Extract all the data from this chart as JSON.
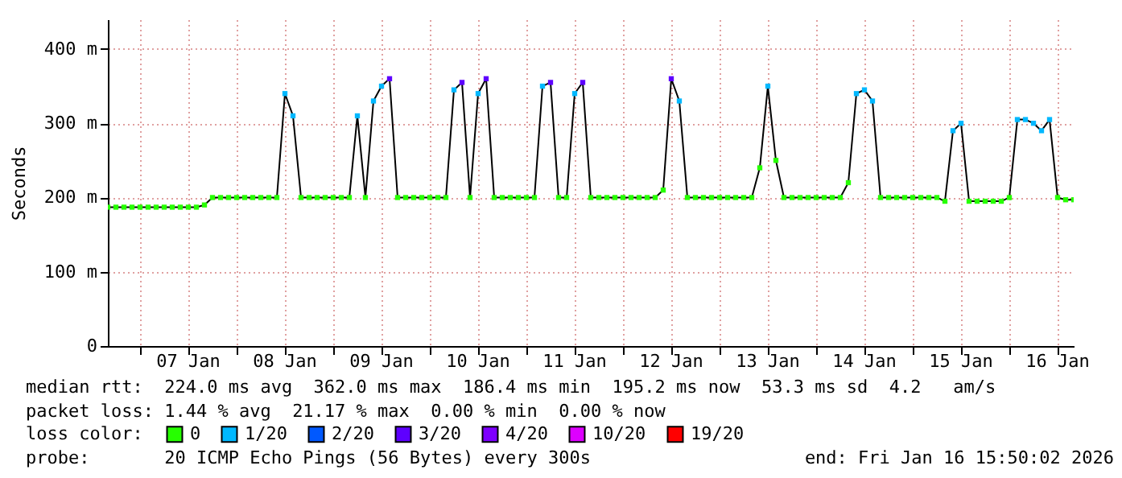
{
  "chart_data": {
    "type": "line",
    "ylabel": "Seconds",
    "legend_title": "loss color:",
    "legend": "bottom",
    "grid": true,
    "marker": "square",
    "line_style": "solid",
    "xlim": [
      "2026-01-06T16:00",
      "2026-01-16T16:00"
    ],
    "xticks": [
      {
        "value": "2026-01-07T00:00",
        "label": null
      },
      {
        "value": "2026-01-07T12:00",
        "label": "07 Jan"
      },
      {
        "value": "2026-01-08T00:00",
        "label": null
      },
      {
        "value": "2026-01-08T12:00",
        "label": "08 Jan"
      },
      {
        "value": "2026-01-09T00:00",
        "label": null
      },
      {
        "value": "2026-01-09T12:00",
        "label": "09 Jan"
      },
      {
        "value": "2026-01-10T00:00",
        "label": null
      },
      {
        "value": "2026-01-10T12:00",
        "label": "10 Jan"
      },
      {
        "value": "2026-01-11T00:00",
        "label": null
      },
      {
        "value": "2026-01-11T12:00",
        "label": "11 Jan"
      },
      {
        "value": "2026-01-12T00:00",
        "label": null
      },
      {
        "value": "2026-01-12T12:00",
        "label": "12 Jan"
      },
      {
        "value": "2026-01-13T00:00",
        "label": null
      },
      {
        "value": "2026-01-13T12:00",
        "label": "13 Jan"
      },
      {
        "value": "2026-01-14T00:00",
        "label": null
      },
      {
        "value": "2026-01-14T12:00",
        "label": "14 Jan"
      },
      {
        "value": "2026-01-15T00:00",
        "label": null
      },
      {
        "value": "2026-01-15T12:00",
        "label": "15 Jan"
      },
      {
        "value": "2026-01-16T00:00",
        "label": null
      },
      {
        "value": "2026-01-16T12:00",
        "label": "16 Jan"
      }
    ],
    "ylim": [
      0,
      440
    ],
    "yticks": [
      0,
      {
        "value": 100,
        "label": "100 m"
      },
      {
        "value": 200,
        "label": "200 m"
      },
      {
        "value": 300,
        "label": "300 m"
      },
      {
        "value": 400,
        "label": "400 m"
      }
    ],
    "x": [
      "2026-01-06T16:00",
      "2026-01-06T18:00",
      "2026-01-06T20:00",
      "2026-01-06T22:00",
      "2026-01-07T00:00",
      "2026-01-07T02:00",
      "2026-01-07T04:00",
      "2026-01-07T06:00",
      "2026-01-07T08:00",
      "2026-01-07T10:00",
      "2026-01-07T12:00",
      "2026-01-07T14:00",
      "2026-01-07T16:00",
      "2026-01-07T18:00",
      "2026-01-07T20:00",
      "2026-01-07T22:00",
      "2026-01-08T00:00",
      "2026-01-08T02:00",
      "2026-01-08T04:00",
      "2026-01-08T06:00",
      "2026-01-08T08:00",
      "2026-01-08T10:00",
      "2026-01-08T12:00",
      "2026-01-08T14:00",
      "2026-01-08T16:00",
      "2026-01-08T18:00",
      "2026-01-08T20:00",
      "2026-01-08T22:00",
      "2026-01-09T00:00",
      "2026-01-09T02:00",
      "2026-01-09T04:00",
      "2026-01-09T06:00",
      "2026-01-09T08:00",
      "2026-01-09T10:00",
      "2026-01-09T12:00",
      "2026-01-09T14:00",
      "2026-01-09T16:00",
      "2026-01-09T18:00",
      "2026-01-09T20:00",
      "2026-01-09T22:00",
      "2026-01-10T00:00",
      "2026-01-10T02:00",
      "2026-01-10T04:00",
      "2026-01-10T06:00",
      "2026-01-10T08:00",
      "2026-01-10T10:00",
      "2026-01-10T12:00",
      "2026-01-10T14:00",
      "2026-01-10T16:00",
      "2026-01-10T18:00",
      "2026-01-10T20:00",
      "2026-01-10T22:00",
      "2026-01-11T00:00",
      "2026-01-11T02:00",
      "2026-01-11T04:00",
      "2026-01-11T06:00",
      "2026-01-11T08:00",
      "2026-01-11T10:00",
      "2026-01-11T12:00",
      "2026-01-11T14:00",
      "2026-01-11T16:00",
      "2026-01-11T18:00",
      "2026-01-11T20:00",
      "2026-01-11T22:00",
      "2026-01-12T00:00",
      "2026-01-12T02:00",
      "2026-01-12T04:00",
      "2026-01-12T06:00",
      "2026-01-12T08:00",
      "2026-01-12T10:00",
      "2026-01-12T12:00",
      "2026-01-12T14:00",
      "2026-01-12T16:00",
      "2026-01-12T18:00",
      "2026-01-12T20:00",
      "2026-01-12T22:00",
      "2026-01-13T00:00",
      "2026-01-13T02:00",
      "2026-01-13T04:00",
      "2026-01-13T06:00",
      "2026-01-13T08:00",
      "2026-01-13T10:00",
      "2026-01-13T12:00",
      "2026-01-13T14:00",
      "2026-01-13T16:00",
      "2026-01-13T18:00",
      "2026-01-13T20:00",
      "2026-01-13T22:00",
      "2026-01-14T00:00",
      "2026-01-14T02:00",
      "2026-01-14T04:00",
      "2026-01-14T06:00",
      "2026-01-14T08:00",
      "2026-01-14T10:00",
      "2026-01-14T12:00",
      "2026-01-14T14:00",
      "2026-01-14T16:00",
      "2026-01-14T18:00",
      "2026-01-14T20:00",
      "2026-01-14T22:00",
      "2026-01-15T00:00",
      "2026-01-15T02:00",
      "2026-01-15T04:00",
      "2026-01-15T06:00",
      "2026-01-15T08:00",
      "2026-01-15T10:00",
      "2026-01-15T12:00",
      "2026-01-15T14:00",
      "2026-01-15T16:00",
      "2026-01-15T18:00",
      "2026-01-15T20:00",
      "2026-01-15T22:00",
      "2026-01-16T00:00",
      "2026-01-16T02:00",
      "2026-01-16T04:00",
      "2026-01-16T06:00",
      "2026-01-16T08:00",
      "2026-01-16T10:00",
      "2026-01-16T12:00",
      "2026-01-16T14:00",
      "2026-01-16T16:00"
    ],
    "series": [
      {
        "color": "#000000",
        "marker": "none",
        "values": [
          187,
          187,
          187,
          187,
          187,
          187,
          187,
          187,
          187,
          187,
          187,
          187,
          190,
          200,
          200,
          200,
          200,
          200,
          200,
          200,
          200,
          200,
          340,
          310,
          200,
          200,
          200,
          200,
          200,
          200,
          200,
          310,
          200,
          330,
          350,
          360,
          200,
          200,
          200,
          200,
          200,
          200,
          200,
          345,
          355,
          200,
          340,
          360,
          200,
          200,
          200,
          200,
          200,
          200,
          350,
          355,
          200,
          200,
          340,
          355,
          200,
          200,
          200,
          200,
          200,
          200,
          200,
          200,
          200,
          210,
          360,
          330,
          200,
          200,
          200,
          200,
          200,
          200,
          200,
          200,
          200,
          240,
          350,
          250,
          200,
          200,
          200,
          200,
          200,
          200,
          200,
          200,
          220,
          340,
          345,
          330,
          200,
          200,
          200,
          200,
          200,
          200,
          200,
          200,
          195,
          290,
          300,
          195,
          195,
          195,
          195,
          195,
          200,
          305,
          305,
          300,
          290,
          305,
          200,
          197,
          197
        ]
      },
      {
        "type": "scatter",
        "name": "0",
        "color": "#26ff00",
        "values": [
          187,
          187,
          187,
          187,
          187,
          187,
          187,
          187,
          187,
          187,
          187,
          187,
          190,
          200,
          200,
          200,
          200,
          200,
          200,
          200,
          200,
          200,
          null,
          null,
          200,
          200,
          200,
          200,
          200,
          200,
          200,
          null,
          200,
          null,
          null,
          null,
          200,
          200,
          200,
          200,
          200,
          200,
          200,
          null,
          null,
          200,
          null,
          null,
          200,
          200,
          200,
          200,
          200,
          200,
          null,
          null,
          200,
          200,
          null,
          null,
          200,
          200,
          200,
          200,
          200,
          200,
          200,
          200,
          200,
          210,
          null,
          null,
          200,
          200,
          200,
          200,
          200,
          200,
          200,
          200,
          200,
          240,
          null,
          250,
          200,
          200,
          200,
          200,
          200,
          200,
          200,
          200,
          220,
          null,
          null,
          null,
          200,
          200,
          200,
          200,
          200,
          200,
          200,
          200,
          195,
          null,
          null,
          195,
          195,
          195,
          195,
          195,
          200,
          null,
          null,
          null,
          null,
          null,
          200,
          197,
          197
        ]
      },
      {
        "type": "scatter",
        "name": "1/20",
        "color": "#00b8ff",
        "x": [
          "2026-01-08T12:00",
          "2026-01-08T14:00",
          "2026-01-09T06:00",
          "2026-01-09T10:00",
          "2026-01-09T12:00",
          "2026-01-10T06:00",
          "2026-01-10T12:00",
          "2026-01-11T04:00",
          "2026-01-11T12:00",
          "2026-01-12T14:00",
          "2026-01-13T12:00",
          "2026-01-14T10:00",
          "2026-01-14T12:00",
          "2026-01-14T14:00",
          "2026-01-15T10:00",
          "2026-01-15T12:00",
          "2026-01-16T02:00",
          "2026-01-16T04:00",
          "2026-01-16T06:00",
          "2026-01-16T08:00",
          "2026-01-16T10:00"
        ],
        "values": [
          340,
          310,
          310,
          330,
          350,
          345,
          340,
          350,
          340,
          330,
          350,
          340,
          345,
          330,
          290,
          300,
          305,
          305,
          300,
          290,
          305
        ]
      },
      {
        "type": "scatter",
        "name": "2/20",
        "color": "#0059ff",
        "values": [
          null,
          null,
          null,
          null,
          null,
          null,
          null,
          null,
          null,
          null,
          null,
          null,
          null,
          null,
          null,
          null,
          null,
          null,
          null,
          null,
          null,
          null,
          null,
          null,
          null,
          null,
          null,
          null,
          null,
          null,
          null,
          null,
          null,
          null,
          null,
          null,
          null,
          null,
          null,
          null,
          null,
          null,
          null,
          null,
          null,
          null,
          null,
          null,
          null,
          null,
          null,
          null,
          null,
          null,
          null,
          null,
          null,
          null,
          null,
          null,
          null,
          null,
          null,
          null,
          null,
          null,
          null,
          null,
          null,
          null,
          null,
          null,
          null,
          null,
          null,
          null,
          null,
          null,
          null,
          null,
          null,
          null,
          null,
          null,
          null,
          null,
          null,
          null,
          null,
          null,
          null,
          null,
          null,
          null,
          null,
          null,
          null,
          null,
          null,
          null,
          null,
          null,
          null,
          null,
          null,
          null,
          null,
          null,
          null,
          null,
          null,
          null,
          null,
          null,
          null,
          null,
          null,
          null,
          null,
          null,
          null
        ]
      },
      {
        "type": "scatter",
        "name": "3/20",
        "color": "#5e00ff",
        "x": [
          "2026-01-09T14:00",
          "2026-01-10T08:00",
          "2026-01-10T14:00",
          "2026-01-11T06:00",
          "2026-01-11T14:00",
          "2026-01-12T12:00"
        ],
        "values": [
          360,
          355,
          360,
          355,
          355,
          360
        ]
      },
      {
        "type": "scatter",
        "name": "4/20",
        "color": "#7e00ff",
        "values": [
          null,
          null,
          null,
          null,
          null,
          null,
          null,
          null,
          null,
          null,
          null,
          null,
          null,
          null,
          null,
          null,
          null,
          null,
          null,
          null,
          null,
          null,
          null,
          null,
          null,
          null,
          null,
          null,
          null,
          null,
          null,
          null,
          null,
          null,
          null,
          null,
          null,
          null,
          null,
          null,
          null,
          null,
          null,
          null,
          null,
          null,
          null,
          null,
          null,
          null,
          null,
          null,
          null,
          null,
          null,
          null,
          null,
          null,
          null,
          null,
          null,
          null,
          null,
          null,
          null,
          null,
          null,
          null,
          null,
          null,
          null,
          null,
          null,
          null,
          null,
          null,
          null,
          null,
          null,
          null,
          null,
          null,
          null,
          null,
          null,
          null,
          null,
          null,
          null,
          null,
          null,
          null,
          null,
          null,
          null,
          null,
          null,
          null,
          null,
          null,
          null,
          null,
          null,
          null,
          null,
          null,
          null,
          null,
          null,
          null,
          null,
          null,
          null,
          null,
          null,
          null,
          null,
          null,
          null,
          null,
          null
        ]
      },
      {
        "type": "scatter",
        "name": "10/20",
        "color": "#dd00ff",
        "values": [
          null,
          null,
          null,
          null,
          null,
          null,
          null,
          null,
          null,
          null,
          null,
          null,
          null,
          null,
          null,
          null,
          null,
          null,
          null,
          null,
          null,
          null,
          null,
          null,
          null,
          null,
          null,
          null,
          null,
          null,
          null,
          null,
          null,
          null,
          null,
          null,
          null,
          null,
          null,
          null,
          null,
          null,
          null,
          null,
          null,
          null,
          null,
          null,
          null,
          null,
          null,
          null,
          null,
          null,
          null,
          null,
          null,
          null,
          null,
          null,
          null,
          null,
          null,
          null,
          null,
          null,
          null,
          null,
          null,
          null,
          null,
          null,
          null,
          null,
          null,
          null,
          null,
          null,
          null,
          null,
          null,
          null,
          null,
          null,
          null,
          null,
          null,
          null,
          null,
          null,
          null,
          null,
          null,
          null,
          null,
          null,
          null,
          null,
          null,
          null,
          null,
          null,
          null,
          null,
          null,
          null,
          null,
          null,
          null,
          null,
          null,
          null,
          null,
          null,
          null,
          null,
          null,
          null,
          null,
          null,
          null
        ]
      },
      {
        "type": "scatter",
        "name": "19/20",
        "color": "#ff0000",
        "values": [
          null,
          null,
          null,
          null,
          null,
          null,
          null,
          null,
          null,
          null,
          null,
          null,
          null,
          null,
          null,
          null,
          null,
          null,
          null,
          null,
          null,
          null,
          null,
          null,
          null,
          null,
          null,
          null,
          null,
          null,
          null,
          null,
          null,
          null,
          null,
          null,
          null,
          null,
          null,
          null,
          null,
          null,
          null,
          null,
          null,
          null,
          null,
          null,
          null,
          null,
          null,
          null,
          null,
          null,
          null,
          null,
          null,
          null,
          null,
          null,
          null,
          null,
          null,
          null,
          null,
          null,
          null,
          null,
          null,
          null,
          null,
          null,
          null,
          null,
          null,
          null,
          null,
          null,
          null,
          null,
          null,
          null,
          null,
          null,
          null,
          null,
          null,
          null,
          null,
          null,
          null,
          null,
          null,
          null,
          null,
          null,
          null,
          null,
          null,
          null,
          null,
          null,
          null,
          null,
          null,
          null,
          null,
          null,
          null,
          null,
          null,
          null,
          null,
          null,
          null,
          null,
          null,
          null,
          null,
          null,
          null
        ]
      }
    ],
    "annotations": [
      "median rtt:  224.0 ms avg  362.0 ms max  186.4 ms min  195.2 ms now  53.3 ms sd  4.2   am/s",
      "packet loss: 1.44 % avg  21.17 % max  0.00 % min  0.00 % now",
      "probe:       20 ICMP Echo Pings (56 Bytes) every 300s",
      "end: Fri Jan 16 15:50:02 2026"
    ]
  }
}
